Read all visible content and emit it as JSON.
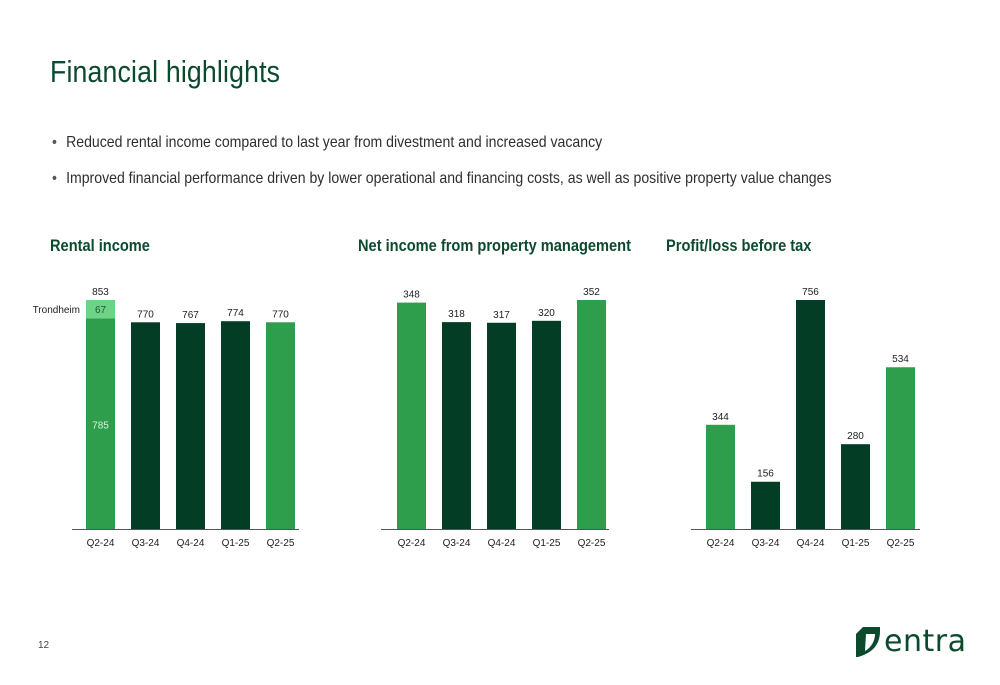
{
  "page": {
    "title": "Financial highlights",
    "bullets": [
      "Reduced rental income compared to last year from divestment and increased vacancy",
      "Improved financial performance driven by lower operational and financing costs, as well as positive property value changes"
    ],
    "page_number": "12",
    "logo_text": "entra"
  },
  "colors": {
    "title": "#0c4a2e",
    "highlight_bar": "#2e9e4c",
    "standard_bar": "#033d26",
    "segment_light": "#6dd387"
  },
  "chart_data": [
    {
      "type": "bar",
      "title": "Rental income",
      "categories": [
        "Q2-24",
        "Q3-24",
        "Q4-24",
        "Q1-25",
        "Q2-25"
      ],
      "values": [
        853,
        770,
        767,
        774,
        770
      ],
      "highlight": [
        true,
        false,
        false,
        false,
        true
      ],
      "stacked_segments": {
        "category": "Q2-24",
        "label": "Trondheim",
        "base": 785,
        "top": 67
      },
      "ylim": [
        0,
        853
      ]
    },
    {
      "type": "bar",
      "title": "Net income from property management",
      "categories": [
        "Q2-24",
        "Q3-24",
        "Q4-24",
        "Q1-25",
        "Q2-25"
      ],
      "values": [
        348,
        318,
        317,
        320,
        352
      ],
      "highlight": [
        true,
        false,
        false,
        false,
        true
      ],
      "ylim": [
        0,
        352
      ]
    },
    {
      "type": "bar",
      "title": "Profit/loss before tax",
      "categories": [
        "Q2-24",
        "Q3-24",
        "Q4-24",
        "Q1-25",
        "Q2-25"
      ],
      "values": [
        344,
        156,
        756,
        280,
        534
      ],
      "highlight": [
        true,
        false,
        false,
        false,
        true
      ],
      "ylim": [
        0,
        756
      ]
    }
  ]
}
